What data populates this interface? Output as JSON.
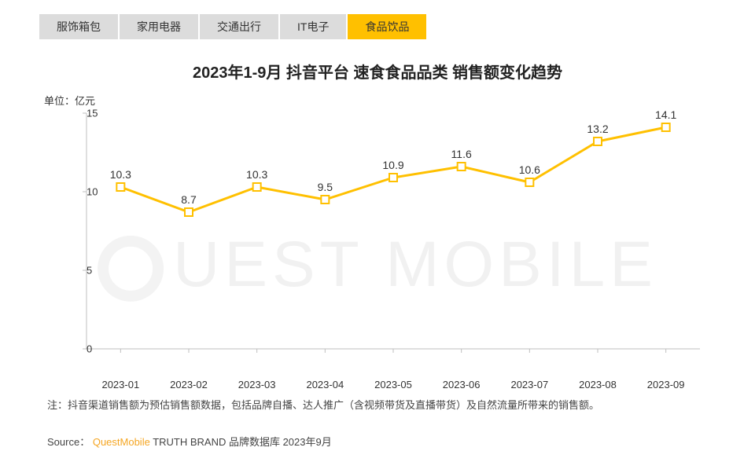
{
  "tabs": [
    {
      "label": "服饰箱包",
      "active": false
    },
    {
      "label": "家用电器",
      "active": false
    },
    {
      "label": "交通出行",
      "active": false
    },
    {
      "label": "IT电子",
      "active": false
    },
    {
      "label": "食品饮品",
      "active": true
    }
  ],
  "chart": {
    "title": "2023年1-9月 抖音平台 速食食品品类 销售额变化趋势",
    "unit_label": "单位：亿元",
    "type": "line",
    "categories": [
      "2023-01",
      "2023-02",
      "2023-03",
      "2023-04",
      "2023-05",
      "2023-06",
      "2023-07",
      "2023-08",
      "2023-09"
    ],
    "values": [
      10.3,
      8.7,
      10.3,
      9.5,
      10.9,
      11.6,
      10.6,
      13.2,
      14.1
    ],
    "value_labels": [
      "10.3",
      "8.7",
      "10.3",
      "9.5",
      "10.9",
      "11.6",
      "10.6",
      "13.2",
      "14.1"
    ],
    "ylim": [
      0,
      15
    ],
    "yticks": [
      0,
      5,
      10,
      15
    ],
    "line_color": "#ffc000",
    "line_width": 3,
    "marker_fill": "#ffffff",
    "marker_stroke": "#ffc000",
    "marker_size": 5,
    "axis_color": "#bfbfbf",
    "tick_color": "#bfbfbf",
    "background_color": "#ffffff",
    "x_axis_fontsize": 13,
    "y_axis_fontsize": 13,
    "title_fontsize": 20,
    "label_fontsize": 14
  },
  "note": "注：抖音渠道销售额为预估销售额数据，包括品牌自播、达人推广（含视频带货及直播带货）及自然流量所带来的销售额。",
  "source_prefix": "Source：",
  "source_brand": "QuestMobile",
  "source_suffix": " TRUTH BRAND 品牌数据库 2023年9月",
  "watermark": "UEST MOBILE"
}
